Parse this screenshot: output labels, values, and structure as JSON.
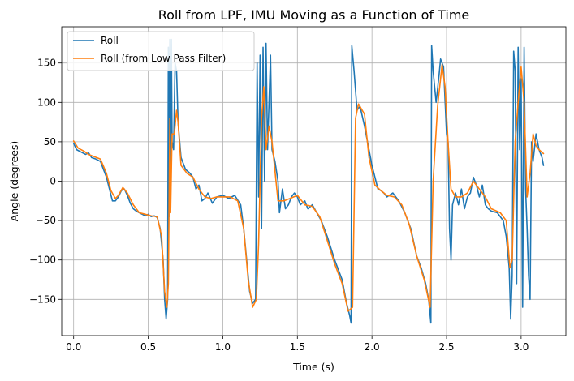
{
  "chart_data": {
    "type": "line",
    "title": "Roll from LPF, IMU Moving as a Function of Time",
    "xlabel": "Time (s)",
    "ylabel": "Angle (degrees)",
    "xlim": [
      -0.08,
      3.3
    ],
    "ylim": [
      -196,
      196
    ],
    "xticks": [
      0.0,
      0.5,
      1.0,
      1.5,
      2.0,
      2.5,
      3.0
    ],
    "xtick_labels": [
      "0.0",
      "0.5",
      "1.0",
      "1.5",
      "2.0",
      "2.5",
      "3.0"
    ],
    "yticks": [
      -150,
      -100,
      -50,
      0,
      50,
      100,
      150
    ],
    "ytick_labels": [
      "−150",
      "−100",
      "−50",
      "0",
      "50",
      "100",
      "150"
    ],
    "grid": true,
    "legend_position": "top-left",
    "series": [
      {
        "name": "Roll",
        "color": "#1f77b4",
        "points": [
          [
            0,
            48
          ],
          [
            0.02,
            40
          ],
          [
            0.05,
            37
          ],
          [
            0.08,
            34
          ],
          [
            0.1,
            36
          ],
          [
            0.12,
            30
          ],
          [
            0.15,
            28
          ],
          [
            0.18,
            25
          ],
          [
            0.2,
            15
          ],
          [
            0.22,
            5
          ],
          [
            0.24,
            -10
          ],
          [
            0.26,
            -25
          ],
          [
            0.28,
            -25
          ],
          [
            0.3,
            -20
          ],
          [
            0.32,
            -12
          ],
          [
            0.34,
            -10
          ],
          [
            0.36,
            -18
          ],
          [
            0.38,
            -28
          ],
          [
            0.4,
            -35
          ],
          [
            0.42,
            -38
          ],
          [
            0.44,
            -40
          ],
          [
            0.46,
            -42
          ],
          [
            0.48,
            -44
          ],
          [
            0.5,
            -42
          ],
          [
            0.52,
            -45
          ],
          [
            0.54,
            -44
          ],
          [
            0.56,
            -46
          ],
          [
            0.58,
            -60
          ],
          [
            0.6,
            -100
          ],
          [
            0.61,
            -150
          ],
          [
            0.62,
            -175
          ],
          [
            0.63,
            -150
          ],
          [
            0.635,
            170
          ],
          [
            0.64,
            -45
          ],
          [
            0.645,
            180
          ],
          [
            0.65,
            -10
          ],
          [
            0.655,
            180
          ],
          [
            0.66,
            50
          ],
          [
            0.67,
            40
          ],
          [
            0.68,
            150
          ],
          [
            0.69,
            140
          ],
          [
            0.7,
            75
          ],
          [
            0.72,
            30
          ],
          [
            0.75,
            15
          ],
          [
            0.78,
            10
          ],
          [
            0.8,
            5
          ],
          [
            0.82,
            -10
          ],
          [
            0.84,
            -5
          ],
          [
            0.86,
            -25
          ],
          [
            0.88,
            -22
          ],
          [
            0.9,
            -15
          ],
          [
            0.93,
            -28
          ],
          [
            0.96,
            -20
          ],
          [
            1.0,
            -18
          ],
          [
            1.04,
            -22
          ],
          [
            1.08,
            -18
          ],
          [
            1.12,
            -30
          ],
          [
            1.14,
            -60
          ],
          [
            1.16,
            -100
          ],
          [
            1.18,
            -140
          ],
          [
            1.2,
            -155
          ],
          [
            1.22,
            -150
          ],
          [
            1.23,
            150
          ],
          [
            1.24,
            -20
          ],
          [
            1.25,
            160
          ],
          [
            1.26,
            -60
          ],
          [
            1.27,
            170
          ],
          [
            1.28,
            0
          ],
          [
            1.29,
            175
          ],
          [
            1.3,
            40
          ],
          [
            1.31,
            100
          ],
          [
            1.32,
            160
          ],
          [
            1.33,
            40
          ],
          [
            1.35,
            25
          ],
          [
            1.37,
            0
          ],
          [
            1.38,
            -40
          ],
          [
            1.4,
            -10
          ],
          [
            1.42,
            -35
          ],
          [
            1.44,
            -30
          ],
          [
            1.46,
            -20
          ],
          [
            1.48,
            -15
          ],
          [
            1.5,
            -20
          ],
          [
            1.52,
            -30
          ],
          [
            1.55,
            -25
          ],
          [
            1.57,
            -35
          ],
          [
            1.6,
            -30
          ],
          [
            1.63,
            -40
          ],
          [
            1.66,
            -50
          ],
          [
            1.7,
            -70
          ],
          [
            1.75,
            -100
          ],
          [
            1.8,
            -125
          ],
          [
            1.83,
            -155
          ],
          [
            1.85,
            -170
          ],
          [
            1.86,
            -180
          ],
          [
            1.865,
            172
          ],
          [
            1.88,
            140
          ],
          [
            1.9,
            90
          ],
          [
            1.92,
            95
          ],
          [
            1.95,
            70
          ],
          [
            1.97,
            50
          ],
          [
            2.0,
            20
          ],
          [
            2.02,
            5
          ],
          [
            2.04,
            -10
          ],
          [
            2.06,
            -12
          ],
          [
            2.08,
            -15
          ],
          [
            2.1,
            -20
          ],
          [
            2.14,
            -15
          ],
          [
            2.18,
            -25
          ],
          [
            2.22,
            -40
          ],
          [
            2.26,
            -60
          ],
          [
            2.3,
            -95
          ],
          [
            2.33,
            -110
          ],
          [
            2.36,
            -130
          ],
          [
            2.38,
            -150
          ],
          [
            2.395,
            -180
          ],
          [
            2.4,
            172
          ],
          [
            2.41,
            140
          ],
          [
            2.43,
            100
          ],
          [
            2.45,
            135
          ],
          [
            2.46,
            155
          ],
          [
            2.48,
            145
          ],
          [
            2.5,
            60
          ],
          [
            2.51,
            50
          ],
          [
            2.52,
            -60
          ],
          [
            2.53,
            -100
          ],
          [
            2.54,
            -30
          ],
          [
            2.56,
            -15
          ],
          [
            2.58,
            -30
          ],
          [
            2.6,
            -10
          ],
          [
            2.62,
            -35
          ],
          [
            2.64,
            -20
          ],
          [
            2.66,
            -15
          ],
          [
            2.68,
            5
          ],
          [
            2.7,
            -5
          ],
          [
            2.72,
            -20
          ],
          [
            2.74,
            -5
          ],
          [
            2.76,
            -30
          ],
          [
            2.78,
            -35
          ],
          [
            2.8,
            -38
          ],
          [
            2.84,
            -40
          ],
          [
            2.88,
            -50
          ],
          [
            2.9,
            -70
          ],
          [
            2.92,
            -110
          ],
          [
            2.93,
            -175
          ],
          [
            2.94,
            -120
          ],
          [
            2.95,
            165
          ],
          [
            2.96,
            140
          ],
          [
            2.97,
            -130
          ],
          [
            2.98,
            170
          ],
          [
            2.99,
            40
          ],
          [
            3.0,
            130
          ],
          [
            3.01,
            -160
          ],
          [
            3.02,
            170
          ],
          [
            3.03,
            -10
          ],
          [
            3.04,
            -60
          ],
          [
            3.05,
            -120
          ],
          [
            3.06,
            -150
          ],
          [
            3.07,
            50
          ],
          [
            3.08,
            25
          ],
          [
            3.1,
            60
          ],
          [
            3.12,
            40
          ],
          [
            3.14,
            30
          ],
          [
            3.15,
            20
          ]
        ]
      },
      {
        "name": "Roll (from Low Pass Filter)",
        "color": "#ff7f0e",
        "points": [
          [
            0,
            51
          ],
          [
            0.03,
            42
          ],
          [
            0.07,
            38
          ],
          [
            0.1,
            34
          ],
          [
            0.14,
            31
          ],
          [
            0.18,
            28
          ],
          [
            0.22,
            10
          ],
          [
            0.25,
            -12
          ],
          [
            0.28,
            -22
          ],
          [
            0.3,
            -18
          ],
          [
            0.33,
            -8
          ],
          [
            0.36,
            -15
          ],
          [
            0.4,
            -30
          ],
          [
            0.44,
            -40
          ],
          [
            0.48,
            -42
          ],
          [
            0.52,
            -44
          ],
          [
            0.56,
            -45
          ],
          [
            0.59,
            -70
          ],
          [
            0.61,
            -140
          ],
          [
            0.625,
            -160
          ],
          [
            0.635,
            -130
          ],
          [
            0.645,
            80
          ],
          [
            0.65,
            -40
          ],
          [
            0.66,
            60
          ],
          [
            0.675,
            60
          ],
          [
            0.69,
            90
          ],
          [
            0.7,
            75
          ],
          [
            0.72,
            20
          ],
          [
            0.76,
            10
          ],
          [
            0.8,
            5
          ],
          [
            0.84,
            -10
          ],
          [
            0.88,
            -20
          ],
          [
            0.92,
            -22
          ],
          [
            0.96,
            -20
          ],
          [
            1.0,
            -20
          ],
          [
            1.05,
            -20
          ],
          [
            1.1,
            -25
          ],
          [
            1.14,
            -60
          ],
          [
            1.17,
            -125
          ],
          [
            1.2,
            -160
          ],
          [
            1.225,
            -150
          ],
          [
            1.24,
            -80
          ],
          [
            1.26,
            80
          ],
          [
            1.275,
            120
          ],
          [
            1.29,
            40
          ],
          [
            1.31,
            70
          ],
          [
            1.33,
            50
          ],
          [
            1.37,
            -25
          ],
          [
            1.41,
            -25
          ],
          [
            1.45,
            -22
          ],
          [
            1.5,
            -18
          ],
          [
            1.55,
            -30
          ],
          [
            1.6,
            -32
          ],
          [
            1.65,
            -45
          ],
          [
            1.7,
            -75
          ],
          [
            1.75,
            -105
          ],
          [
            1.8,
            -130
          ],
          [
            1.84,
            -165
          ],
          [
            1.87,
            -160
          ],
          [
            1.89,
            80
          ],
          [
            1.91,
            98
          ],
          [
            1.95,
            85
          ],
          [
            1.98,
            30
          ],
          [
            2.02,
            -5
          ],
          [
            2.06,
            -12
          ],
          [
            2.1,
            -18
          ],
          [
            2.15,
            -20
          ],
          [
            2.2,
            -30
          ],
          [
            2.25,
            -55
          ],
          [
            2.3,
            -95
          ],
          [
            2.35,
            -125
          ],
          [
            2.39,
            -160
          ],
          [
            2.41,
            0
          ],
          [
            2.44,
            95
          ],
          [
            2.46,
            130
          ],
          [
            2.47,
            148
          ],
          [
            2.49,
            120
          ],
          [
            2.51,
            50
          ],
          [
            2.53,
            -10
          ],
          [
            2.56,
            -20
          ],
          [
            2.6,
            -20
          ],
          [
            2.64,
            -15
          ],
          [
            2.68,
            0
          ],
          [
            2.72,
            -10
          ],
          [
            2.76,
            -20
          ],
          [
            2.8,
            -35
          ],
          [
            2.86,
            -40
          ],
          [
            2.9,
            -50
          ],
          [
            2.925,
            -110
          ],
          [
            2.94,
            -100
          ],
          [
            2.96,
            50
          ],
          [
            2.98,
            100
          ],
          [
            3.0,
            145
          ],
          [
            3.02,
            100
          ],
          [
            3.04,
            -20
          ],
          [
            3.06,
            10
          ],
          [
            3.08,
            60
          ],
          [
            3.1,
            45
          ],
          [
            3.12,
            40
          ],
          [
            3.15,
            35
          ]
        ]
      }
    ]
  }
}
